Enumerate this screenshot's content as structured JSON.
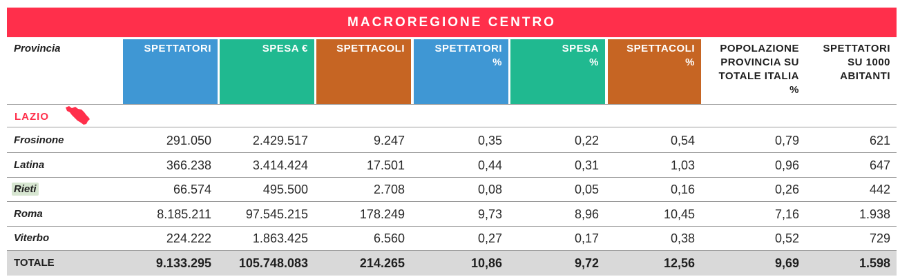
{
  "title": "MACROREGIONE CENTRO",
  "colors": {
    "title_bg": "#ff2f4b",
    "spettatori": "#3f97d4",
    "spesa": "#20b990",
    "spettacoli": "#c66523",
    "total_row": "#d9d9d9",
    "highlight": "#d7e6d1"
  },
  "header": {
    "provincia": "Provincia",
    "columns": [
      [
        "SPETTATORI"
      ],
      [
        "SPESA €"
      ],
      [
        "SPETTACOLI"
      ],
      [
        "SPETTATORI",
        "%"
      ],
      [
        "SPESA",
        "%"
      ],
      [
        "SPETTACOLI",
        "%"
      ],
      [
        "POPOLAZIONE",
        "PROVINCIA SU",
        "TOTALE ITALIA",
        "%"
      ],
      [
        "SPETTATORI",
        "SU 1000",
        "ABITANTI"
      ]
    ]
  },
  "region": {
    "label": "LAZIO",
    "icon": "lazio-map-icon"
  },
  "rows": [
    {
      "name": "Frosinone",
      "values": [
        "291.050",
        "2.429.517",
        "9.247",
        "0,35",
        "0,22",
        "0,54",
        "0,79",
        "621"
      ]
    },
    {
      "name": "Latina",
      "values": [
        "366.238",
        "3.414.424",
        "17.501",
        "0,44",
        "0,31",
        "1,03",
        "0,96",
        "647"
      ]
    },
    {
      "name": "Rieti",
      "values": [
        "66.574",
        "495.500",
        "2.708",
        "0,08",
        "0,05",
        "0,16",
        "0,26",
        "442"
      ]
    },
    {
      "name": "Roma",
      "values": [
        "8.185.211",
        "97.545.215",
        "178.249",
        "9,73",
        "8,96",
        "10,45",
        "7,16",
        "1.938"
      ]
    },
    {
      "name": "Viterbo",
      "values": [
        "224.222",
        "1.863.425",
        "6.560",
        "0,27",
        "0,17",
        "0,38",
        "0,52",
        "729"
      ]
    }
  ],
  "total": {
    "name": "TOTALE",
    "values": [
      "9.133.295",
      "105.748.083",
      "214.265",
      "10,86",
      "9,72",
      "12,56",
      "9,69",
      "1.598"
    ]
  }
}
